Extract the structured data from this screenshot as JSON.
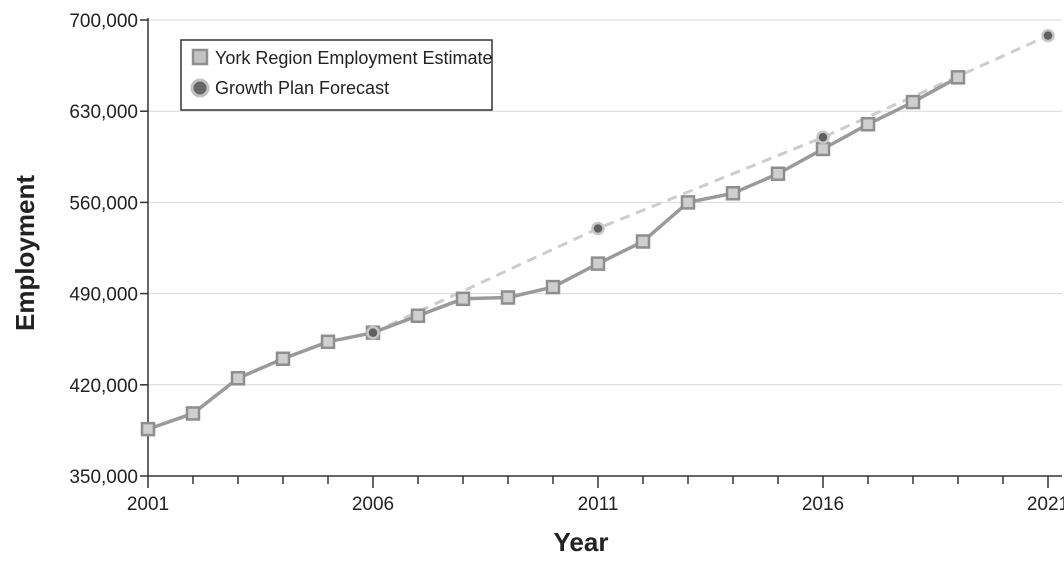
{
  "chart_data": {
    "type": "line",
    "ylabel": "Employment",
    "xlabel": "Year",
    "xlim": [
      2001,
      2021
    ],
    "ylim": [
      350000,
      700000
    ],
    "x_ticks": [
      2001,
      2006,
      2011,
      2016,
      2021
    ],
    "x_tick_labels": [
      "2001",
      "2006",
      "2011",
      "2016",
      "2021"
    ],
    "y_ticks": [
      350000,
      420000,
      490000,
      560000,
      630000,
      700000
    ],
    "y_tick_labels": [
      "350,000",
      "420,000",
      "490,000",
      "560,000",
      "630,000",
      "700,000"
    ],
    "grid": "horizontal",
    "legend_position": "top-left",
    "series": [
      {
        "name": "York Region Employment Estimate",
        "marker": "square",
        "line_style": "solid",
        "color": "#9a9a9a",
        "x": [
          2001,
          2002,
          2003,
          2004,
          2005,
          2006,
          2007,
          2008,
          2009,
          2010,
          2011,
          2012,
          2013,
          2014,
          2015,
          2016,
          2017,
          2018,
          2019
        ],
        "values": [
          386000,
          398000,
          425000,
          440000,
          453000,
          460000,
          473000,
          486000,
          487000,
          495000,
          513000,
          530000,
          560000,
          567000,
          582000,
          601000,
          620000,
          637000,
          656000
        ]
      },
      {
        "name": "Growth Plan Forecast",
        "marker": "circle",
        "line_style": "dashed",
        "color": "#c8c8c8",
        "x": [
          2006,
          2011,
          2016,
          2021
        ],
        "values": [
          460000,
          540000,
          610000,
          688000
        ]
      }
    ]
  }
}
